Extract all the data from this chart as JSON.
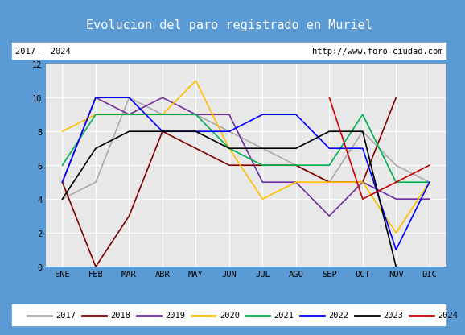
{
  "title": "Evolucion del paro registrado en Muriel",
  "title_bg": "#5b9bd5",
  "subtitle_left": "2017 - 2024",
  "subtitle_right": "http://www.foro-ciudad.com",
  "months": [
    "ENE",
    "FEB",
    "MAR",
    "ABR",
    "MAY",
    "JUN",
    "JUL",
    "AGO",
    "SEP",
    "OCT",
    "NOV",
    "DIC"
  ],
  "ylim": [
    0,
    12
  ],
  "yticks": [
    0,
    2,
    4,
    6,
    8,
    10,
    12
  ],
  "plot_bg": "#e8e8e8",
  "border_color": "#5b9bd5",
  "series": [
    {
      "year": "2017",
      "color": "#aaaaaa",
      "data": [
        4,
        5,
        10,
        9,
        9,
        8,
        7,
        6,
        5,
        8,
        6,
        5
      ]
    },
    {
      "year": "2018",
      "color": "#800000",
      "data": [
        5,
        0,
        3,
        8,
        7,
        6,
        6,
        6,
        5,
        5,
        10,
        null
      ]
    },
    {
      "year": "2019",
      "color": "#7030a0",
      "data": [
        5,
        10,
        9,
        10,
        9,
        9,
        5,
        5,
        3,
        5,
        4,
        4
      ]
    },
    {
      "year": "2020",
      "color": "#ffc000",
      "data": [
        8,
        9,
        9,
        9,
        11,
        7,
        4,
        5,
        5,
        5,
        2,
        5
      ]
    },
    {
      "year": "2021",
      "color": "#00b050",
      "data": [
        6,
        9,
        9,
        9,
        9,
        7,
        6,
        6,
        6,
        9,
        5,
        5
      ]
    },
    {
      "year": "2022",
      "color": "#0000ff",
      "data": [
        5,
        10,
        10,
        8,
        8,
        8,
        9,
        9,
        7,
        7,
        1,
        5
      ]
    },
    {
      "year": "2023",
      "color": "#000000",
      "data": [
        4,
        7,
        8,
        8,
        8,
        7,
        7,
        7,
        8,
        8,
        0,
        null
      ]
    },
    {
      "year": "2024",
      "color": "#cc0000",
      "data": [
        null,
        null,
        null,
        null,
        null,
        null,
        null,
        null,
        10,
        4,
        5,
        6
      ]
    }
  ],
  "legend_order": [
    "2017",
    "2018",
    "2019",
    "2020",
    "2021",
    "2022",
    "2023",
    "2024"
  ]
}
